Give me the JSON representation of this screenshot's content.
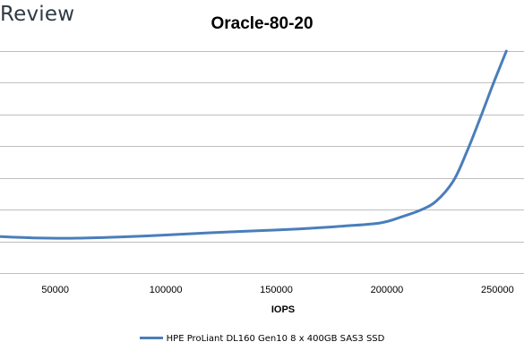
{
  "header": {
    "brand": "Review"
  },
  "chart_data": {
    "type": "line",
    "title": "Oracle-80-20",
    "xlabel": "IOPS",
    "ylabel": "",
    "xlim": [
      25000,
      262000
    ],
    "ylim": [
      0,
      7
    ],
    "x_ticks": [
      50000,
      100000,
      150000,
      200000,
      250000
    ],
    "x_tick_labels": [
      "50000",
      "100000",
      "150000",
      "200000",
      "250000"
    ],
    "grid": true,
    "legend_position": "bottom",
    "color": "#4a7ebb",
    "series": [
      {
        "name": "HPE ProLiant DL160 Gen10 8 x 400GB SAS3 SSD",
        "points": [
          [
            25000,
            1.15
          ],
          [
            40000,
            1.11
          ],
          [
            60000,
            1.1
          ],
          [
            80000,
            1.14
          ],
          [
            100000,
            1.2
          ],
          [
            120000,
            1.27
          ],
          [
            140000,
            1.33
          ],
          [
            160000,
            1.39
          ],
          [
            180000,
            1.48
          ],
          [
            197000,
            1.58
          ],
          [
            207000,
            1.78
          ],
          [
            215000,
            1.98
          ],
          [
            222000,
            2.25
          ],
          [
            230000,
            2.9
          ],
          [
            236000,
            3.8
          ],
          [
            242000,
            4.85
          ],
          [
            248000,
            5.95
          ],
          [
            254000,
            7.0
          ]
        ]
      }
    ]
  }
}
